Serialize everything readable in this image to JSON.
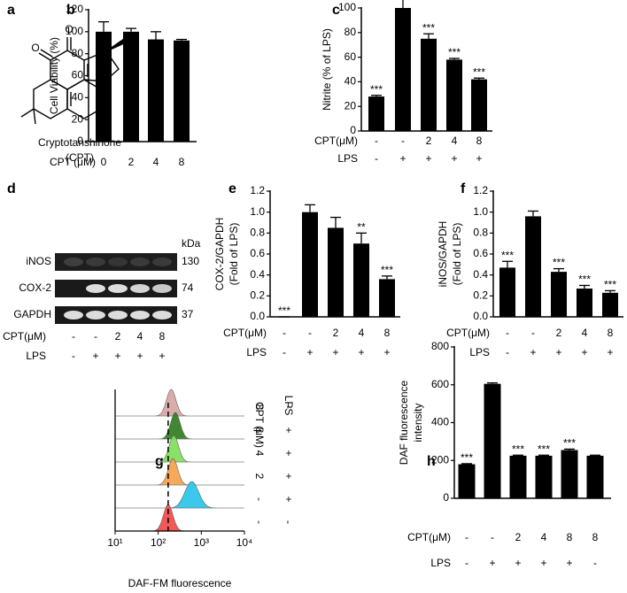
{
  "structure": {
    "panel": "a",
    "atoms": [
      "O",
      "O",
      "O"
    ],
    "name": "Cryptotanshinone",
    "abbr": "(CPT)"
  },
  "blot": {
    "panel": "d",
    "proteins": [
      "iNOS",
      "COX-2",
      "GAPDH"
    ],
    "size_header": "kDa",
    "sizes": [
      130,
      74,
      37
    ],
    "conditions": [
      {
        "name": "CPT(μM)",
        "values": [
          "-",
          "-",
          "2",
          "4",
          "8"
        ]
      },
      {
        "name": "LPS",
        "values": [
          "-",
          "+",
          "+",
          "+",
          "+"
        ]
      }
    ]
  },
  "chart_data": [
    {
      "panel": "b",
      "type": "bar",
      "ylabel": "Cell Viability (%)",
      "xlabel": "CPT (μM)",
      "categories": [
        "0",
        "2",
        "4",
        "8"
      ],
      "values": [
        100,
        100,
        93,
        92
      ],
      "errors": [
        9,
        3,
        7,
        1
      ],
      "color": "#000000",
      "ylim": [
        0,
        120
      ],
      "yticks": [
        0,
        20,
        40,
        60,
        80,
        100,
        120
      ]
    },
    {
      "panel": "c",
      "type": "bar",
      "ylabel": "Nitrite (% of LPS)",
      "values": [
        28,
        100,
        75,
        58,
        42
      ],
      "errors": [
        1,
        10,
        4,
        1,
        1
      ],
      "significance": [
        "***",
        null,
        "***",
        "***",
        "***"
      ],
      "color": "#000000",
      "conditions": [
        {
          "name": "CPT(μM)",
          "values": [
            "-",
            "-",
            "2",
            "4",
            "8"
          ]
        },
        {
          "name": "LPS",
          "values": [
            "-",
            "+",
            "+",
            "+",
            "+"
          ]
        }
      ],
      "ylim": [
        0,
        100
      ],
      "yticks": [
        0,
        20,
        40,
        60,
        80,
        100
      ]
    },
    {
      "panel": "e",
      "type": "bar",
      "ylabel": [
        "COX-2/GAPDH",
        "(Fold of LPS)"
      ],
      "values": [
        0,
        1,
        0.85,
        0.7,
        0.36
      ],
      "errors": [
        0,
        0.07,
        0.1,
        0.1,
        0.03
      ],
      "significance": [
        "***",
        null,
        null,
        "**",
        "***"
      ],
      "color": "#000000",
      "conditions": [
        {
          "name": "CPT(μM)",
          "values": [
            "-",
            "-",
            "2",
            "4",
            "8"
          ]
        },
        {
          "name": "LPS",
          "values": [
            "-",
            "+",
            "+",
            "+",
            "+"
          ]
        }
      ],
      "ylim": [
        0,
        1.2
      ],
      "yticks": [
        {
          "value": 0,
          "label": "0.0"
        },
        0.2,
        0.4,
        0.6,
        0.8,
        {
          "value": 1,
          "label": "1.0"
        },
        1.2
      ]
    },
    {
      "panel": "f",
      "type": "bar",
      "ylabel": [
        "iNOS/GAPDH",
        "(Fold of LPS)"
      ],
      "values": [
        0.47,
        0.96,
        0.43,
        0.27,
        0.23
      ],
      "errors": [
        0.06,
        0.05,
        0.03,
        0.03,
        0.02
      ],
      "significance": [
        "***",
        null,
        "***",
        "***",
        "***"
      ],
      "color": "#000000",
      "conditions": [
        {
          "name": "CPT(μM)",
          "values": [
            "-",
            "-",
            "2",
            "4",
            "8"
          ]
        },
        {
          "name": "LPS",
          "values": [
            "-",
            "+",
            "+",
            "+",
            "+"
          ]
        }
      ],
      "ylim": [
        0,
        1.2
      ],
      "yticks": [
        {
          "value": 0,
          "label": "0.0"
        },
        0.2,
        0.4,
        0.6,
        0.8,
        {
          "value": 1,
          "label": "1.0"
        },
        1.2
      ]
    },
    {
      "panel": "g",
      "type": "histogram-overlay",
      "xlabel": "DAF-FM fluorescence",
      "xscale": "log",
      "xlim": [
        10,
        10000
      ],
      "xticks": [
        {
          "value": 10,
          "label": "10¹"
        },
        {
          "value": 100,
          "label": "10²"
        },
        {
          "value": 1000,
          "label": "10³"
        },
        {
          "value": 10000,
          "label": "10⁴"
        }
      ],
      "reference_line": 170,
      "column_labels": [
        "CPT (μM)",
        "LPS"
      ],
      "series": [
        {
          "cpt": "8",
          "lps": "-",
          "color": "#d6a7a2",
          "peak": 200
        },
        {
          "cpt": "8",
          "lps": "+",
          "color": "#2f7d1f",
          "peak": 250
        },
        {
          "cpt": "4",
          "lps": "+",
          "color": "#7fe05b",
          "peak": 230
        },
        {
          "cpt": "2",
          "lps": "+",
          "color": "#f5a24c",
          "peak": 220
        },
        {
          "cpt": "-",
          "lps": "+",
          "color": "#2bc4ea",
          "peak": 600
        },
        {
          "cpt": "-",
          "lps": "-",
          "color": "#f04b4b",
          "peak": 170
        }
      ]
    },
    {
      "panel": "h",
      "type": "bar",
      "ylabel": [
        "DAF fluorescence",
        "intensity"
      ],
      "values": [
        180,
        605,
        225,
        225,
        255,
        225
      ],
      "errors": [
        3,
        5,
        3,
        3,
        5,
        3
      ],
      "significance": [
        "***",
        null,
        "***",
        "***",
        "***",
        null
      ],
      "color": "#000000",
      "conditions": [
        {
          "name": "CPT(μM)",
          "values": [
            "-",
            "-",
            "2",
            "4",
            "8",
            "8"
          ]
        },
        {
          "name": "LPS",
          "values": [
            "-",
            "+",
            "+",
            "+",
            "+",
            "-"
          ]
        }
      ],
      "ylim": [
        0,
        800
      ],
      "yticks": [
        0,
        200,
        400,
        600,
        800
      ]
    }
  ]
}
